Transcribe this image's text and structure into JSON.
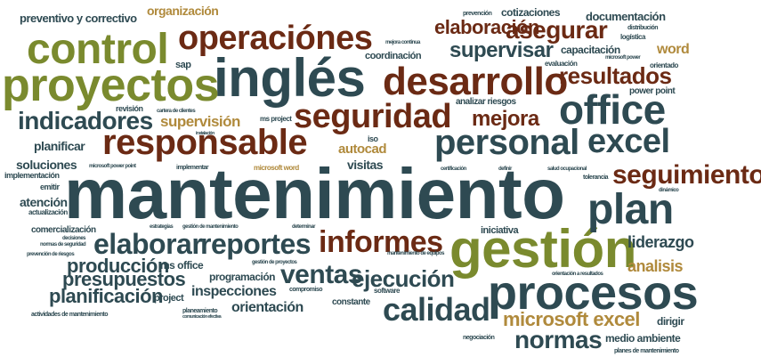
{
  "colors": {
    "slate": "#2e4a52",
    "olive": "#7a8a2e",
    "brown": "#6b2a14",
    "tan": "#b08a3c",
    "sand": "#b8a56a",
    "rust": "#8a3b1a",
    "green": "#5a6a3a",
    "dark": "#3a3a2a"
  },
  "words": [
    {
      "text": "mantenimiento",
      "color": "slate"
    },
    {
      "text": "procesos",
      "color": "slate"
    },
    {
      "text": "inglés",
      "color": "slate"
    },
    {
      "text": "gestión",
      "color": "olive"
    },
    {
      "text": "proyectos",
      "color": "olive"
    },
    {
      "text": "control",
      "color": "olive"
    },
    {
      "text": "operaciónes",
      "color": "brown"
    },
    {
      "text": "responsable",
      "color": "brown"
    },
    {
      "text": "desarrollo",
      "color": "brown"
    },
    {
      "text": "seguridad",
      "color": "brown"
    },
    {
      "text": "personal",
      "color": "slate"
    },
    {
      "text": "office",
      "color": "slate"
    },
    {
      "text": "plan",
      "color": "slate"
    },
    {
      "text": "excel",
      "color": "slate"
    },
    {
      "text": "informes",
      "color": "brown"
    },
    {
      "text": "calidad",
      "color": "slate"
    },
    {
      "text": "reportes",
      "color": "slate"
    },
    {
      "text": "elaborar",
      "color": "slate"
    },
    {
      "text": "indicadores",
      "color": "slate"
    },
    {
      "text": "seguimiento",
      "color": "brown"
    },
    {
      "text": "ventas",
      "color": "slate"
    },
    {
      "text": "normas",
      "color": "slate"
    },
    {
      "text": "ejecución",
      "color": "slate"
    },
    {
      "text": "resultados",
      "color": "brown"
    },
    {
      "text": "mejora",
      "color": "brown"
    },
    {
      "text": "asegurar",
      "color": "brown"
    },
    {
      "text": "elaboración",
      "color": "brown"
    },
    {
      "text": "supervisar",
      "color": "slate"
    },
    {
      "text": "microsoft excel",
      "color": "tan"
    },
    {
      "text": "producción",
      "color": "slate"
    },
    {
      "text": "presupuestos",
      "color": "slate"
    },
    {
      "text": "planificación",
      "color": "slate"
    },
    {
      "text": "liderazgo",
      "color": "slate"
    },
    {
      "text": "analisis",
      "color": "tan"
    },
    {
      "text": "inspecciones",
      "color": "slate"
    },
    {
      "text": "orientación",
      "color": "slate"
    },
    {
      "text": "supervisión",
      "color": "tan"
    },
    {
      "text": "autocad",
      "color": "tan"
    },
    {
      "text": "visitas",
      "color": "slate"
    },
    {
      "text": "planificar",
      "color": "slate"
    },
    {
      "text": "soluciones",
      "color": "slate"
    },
    {
      "text": "atención",
      "color": "slate"
    },
    {
      "text": "word",
      "color": "tan"
    },
    {
      "text": "documentación",
      "color": "slate"
    },
    {
      "text": "cotizaciones",
      "color": "slate"
    },
    {
      "text": "organización",
      "color": "tan"
    },
    {
      "text": "preventivo y correctivo",
      "color": "slate"
    },
    {
      "text": "coordinación",
      "color": "slate"
    },
    {
      "text": "capacitación",
      "color": "slate"
    },
    {
      "text": "programación",
      "color": "slate"
    },
    {
      "text": "ms office",
      "color": "slate"
    },
    {
      "text": "project",
      "color": "slate"
    },
    {
      "text": "dirigir",
      "color": "slate"
    },
    {
      "text": "medio ambiente",
      "color": "slate"
    },
    {
      "text": "constante",
      "color": "slate"
    },
    {
      "text": "iniciativa",
      "color": "slate"
    },
    {
      "text": "comercialización",
      "color": "slate"
    },
    {
      "text": "analizar riesgos",
      "color": "slate"
    },
    {
      "text": "sap",
      "color": "slate"
    },
    {
      "text": "revisión",
      "color": "slate"
    },
    {
      "text": "power point",
      "color": "slate"
    },
    {
      "text": "iso",
      "color": "slate"
    },
    {
      "text": "emitir",
      "color": "slate"
    },
    {
      "text": "implementación",
      "color": "slate"
    },
    {
      "text": "actualización",
      "color": "slate"
    },
    {
      "text": "logística",
      "color": "slate"
    },
    {
      "text": "distribución",
      "color": "slate"
    },
    {
      "text": "evaluación",
      "color": "slate"
    },
    {
      "text": "orientado",
      "color": "slate"
    },
    {
      "text": "ms project",
      "color": "slate"
    },
    {
      "text": "implementar",
      "color": "slate"
    },
    {
      "text": "microsoft word",
      "color": "tan"
    },
    {
      "text": "microsoft power point",
      "color": "slate"
    },
    {
      "text": "certificación",
      "color": "slate"
    },
    {
      "text": "definir",
      "color": "slate"
    },
    {
      "text": "salud ocupacional",
      "color": "slate"
    },
    {
      "text": "tolerancia",
      "color": "slate"
    },
    {
      "text": "dinámico",
      "color": "slate"
    },
    {
      "text": "estrategias",
      "color": "slate"
    },
    {
      "text": "gestión de mantenimiento",
      "color": "slate"
    },
    {
      "text": "determinar",
      "color": "slate"
    },
    {
      "text": "decisiones",
      "color": "slate"
    },
    {
      "text": "normas de seguridad",
      "color": "slate"
    },
    {
      "text": "mantenimiento de equipos",
      "color": "slate"
    },
    {
      "text": "prevención de riesgos",
      "color": "slate"
    },
    {
      "text": "gestión de proyectos",
      "color": "slate"
    },
    {
      "text": "compromiso",
      "color": "slate"
    },
    {
      "text": "software",
      "color": "slate"
    },
    {
      "text": "orientación a resultados",
      "color": "slate"
    },
    {
      "text": "planeamiento",
      "color": "slate"
    },
    {
      "text": "comunicación efectiva",
      "color": "slate"
    },
    {
      "text": "actividades de mantenimiento",
      "color": "slate"
    },
    {
      "text": "negociación",
      "color": "slate"
    },
    {
      "text": "planes de mantenimiento",
      "color": "slate"
    },
    {
      "text": "prevención",
      "color": "slate"
    },
    {
      "text": "mejora continua",
      "color": "slate"
    },
    {
      "text": "cartera de clientes",
      "color": "slate"
    },
    {
      "text": "instalación",
      "color": "slate"
    },
    {
      "text": "microsoft power",
      "color": "slate"
    }
  ]
}
